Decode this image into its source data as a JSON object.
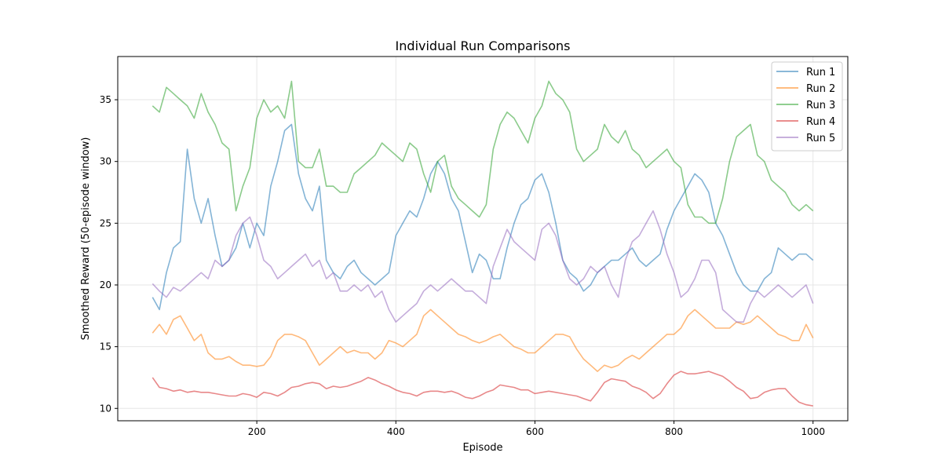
{
  "chart_data": {
    "type": "line",
    "title": "Individual Run Comparisons",
    "xlabel": "Episode",
    "ylabel": "Smoothed Reward (50-episode window)",
    "xlim": [
      0,
      1050
    ],
    "ylim": [
      9,
      38.5
    ],
    "xticks": [
      200,
      400,
      600,
      800,
      1000
    ],
    "yticks": [
      10,
      15,
      20,
      25,
      30,
      35
    ],
    "grid": true,
    "legend_position": "top-right",
    "series": [
      {
        "name": "Run 1",
        "color": "#1f77b4",
        "x": [
          50,
          60,
          70,
          80,
          90,
          100,
          110,
          120,
          130,
          140,
          150,
          160,
          170,
          180,
          190,
          200,
          210,
          220,
          230,
          240,
          250,
          260,
          270,
          280,
          290,
          300,
          310,
          320,
          330,
          340,
          350,
          360,
          370,
          380,
          390,
          400,
          410,
          420,
          430,
          440,
          450,
          460,
          470,
          480,
          490,
          500,
          510,
          520,
          530,
          540,
          550,
          560,
          570,
          580,
          590,
          600,
          610,
          620,
          630,
          640,
          650,
          660,
          670,
          680,
          690,
          700,
          710,
          720,
          730,
          740,
          750,
          760,
          770,
          780,
          790,
          800,
          810,
          820,
          830,
          840,
          850,
          860,
          870,
          880,
          890,
          900,
          910,
          920,
          930,
          940,
          950,
          960,
          970,
          980,
          990,
          1000
        ],
        "values": [
          19.0,
          18.0,
          21.0,
          23.0,
          23.5,
          31.0,
          27.0,
          25.0,
          27.0,
          24.0,
          21.5,
          22.0,
          23.0,
          25.0,
          23.0,
          25.0,
          24.0,
          28.0,
          30.0,
          32.5,
          33.0,
          29.0,
          27.0,
          26.0,
          28.0,
          22.0,
          21.0,
          20.5,
          21.5,
          22.0,
          21.0,
          20.5,
          20.0,
          20.5,
          21.0,
          24.0,
          25.0,
          26.0,
          25.5,
          27.0,
          29.0,
          30.0,
          29.0,
          27.0,
          26.0,
          23.5,
          21.0,
          22.5,
          22.0,
          20.5,
          20.5,
          23.0,
          25.0,
          26.5,
          27.0,
          28.5,
          29.0,
          27.5,
          25.0,
          22.0,
          21.0,
          20.5,
          19.5,
          20.0,
          21.0,
          21.5,
          22.0,
          22.0,
          22.5,
          23.0,
          22.0,
          21.5,
          22.0,
          22.5,
          24.5,
          26.0,
          27.0,
          28.0,
          29.0,
          28.5,
          27.5,
          25.0,
          24.0,
          22.5,
          21.0,
          20.0,
          19.5,
          19.5,
          20.5,
          21.0,
          23.0,
          22.5,
          22.0,
          22.5,
          22.5,
          22.0
        ]
      },
      {
        "name": "Run 2",
        "color": "#ff7f0e",
        "x": [
          50,
          60,
          70,
          80,
          90,
          100,
          110,
          120,
          130,
          140,
          150,
          160,
          170,
          180,
          190,
          200,
          210,
          220,
          230,
          240,
          250,
          260,
          270,
          280,
          290,
          300,
          310,
          320,
          330,
          340,
          350,
          360,
          370,
          380,
          390,
          400,
          410,
          420,
          430,
          440,
          450,
          460,
          470,
          480,
          490,
          500,
          510,
          520,
          530,
          540,
          550,
          560,
          570,
          580,
          590,
          600,
          610,
          620,
          630,
          640,
          650,
          660,
          670,
          680,
          690,
          700,
          710,
          720,
          730,
          740,
          750,
          760,
          770,
          780,
          790,
          800,
          810,
          820,
          830,
          840,
          850,
          860,
          870,
          880,
          890,
          900,
          910,
          920,
          930,
          940,
          950,
          960,
          970,
          980,
          990,
          1000
        ],
        "values": [
          16.1,
          16.8,
          16.0,
          17.2,
          17.5,
          16.5,
          15.5,
          16.0,
          14.5,
          14.0,
          14.0,
          14.2,
          13.8,
          13.5,
          13.5,
          13.4,
          13.5,
          14.2,
          15.5,
          16.0,
          16.0,
          15.8,
          15.5,
          14.5,
          13.5,
          14.0,
          14.5,
          15.0,
          14.5,
          14.7,
          14.5,
          14.5,
          14.0,
          14.5,
          15.5,
          15.3,
          15.0,
          15.5,
          16.0,
          17.5,
          18.0,
          17.5,
          17.0,
          16.5,
          16.0,
          15.8,
          15.5,
          15.3,
          15.5,
          15.8,
          16.0,
          15.5,
          15.0,
          14.8,
          14.5,
          14.5,
          15.0,
          15.5,
          16.0,
          16.0,
          15.8,
          14.8,
          14.0,
          13.5,
          13.0,
          13.5,
          13.3,
          13.5,
          14.0,
          14.3,
          14.0,
          14.5,
          15.0,
          15.5,
          16.0,
          16.0,
          16.5,
          17.5,
          18.0,
          17.5,
          17.0,
          16.5,
          16.5,
          16.5,
          17.0,
          16.8,
          17.0,
          17.5,
          17.0,
          16.5,
          16.0,
          15.8,
          15.5,
          15.5,
          16.8,
          15.7
        ]
      },
      {
        "name": "Run 3",
        "color": "#2ca02c",
        "x": [
          50,
          60,
          70,
          80,
          90,
          100,
          110,
          120,
          130,
          140,
          150,
          160,
          170,
          180,
          190,
          200,
          210,
          220,
          230,
          240,
          250,
          260,
          270,
          280,
          290,
          300,
          310,
          320,
          330,
          340,
          350,
          360,
          370,
          380,
          390,
          400,
          410,
          420,
          430,
          440,
          450,
          460,
          470,
          480,
          490,
          500,
          510,
          520,
          530,
          540,
          550,
          560,
          570,
          580,
          590,
          600,
          610,
          620,
          630,
          640,
          650,
          660,
          670,
          680,
          690,
          700,
          710,
          720,
          730,
          740,
          750,
          760,
          770,
          780,
          790,
          800,
          810,
          820,
          830,
          840,
          850,
          860,
          870,
          880,
          890,
          900,
          910,
          920,
          930,
          940,
          950,
          960,
          970,
          980,
          990,
          1000
        ],
        "values": [
          34.5,
          34.0,
          36.0,
          35.5,
          35.0,
          34.5,
          33.5,
          35.5,
          34.0,
          33.0,
          31.5,
          31.0,
          26.0,
          28.0,
          29.5,
          33.5,
          35.0,
          34.0,
          34.5,
          33.5,
          36.5,
          30.0,
          29.5,
          29.5,
          31.0,
          28.0,
          28.0,
          27.5,
          27.5,
          29.0,
          29.5,
          30.0,
          30.5,
          31.5,
          31.0,
          30.5,
          30.0,
          31.5,
          31.0,
          29.0,
          27.5,
          30.0,
          30.5,
          28.0,
          27.0,
          26.5,
          26.0,
          25.5,
          26.5,
          31.0,
          33.0,
          34.0,
          33.5,
          32.5,
          31.5,
          33.5,
          34.5,
          36.5,
          35.5,
          35.0,
          34.0,
          31.0,
          30.0,
          30.5,
          31.0,
          33.0,
          32.0,
          31.5,
          32.5,
          31.0,
          30.5,
          29.5,
          30.0,
          30.5,
          31.0,
          30.0,
          29.5,
          26.5,
          25.5,
          25.5,
          25.0,
          25.0,
          27.0,
          30.0,
          32.0,
          32.5,
          33.0,
          30.5,
          30.0,
          28.5,
          28.0,
          27.5,
          26.5,
          26.0,
          26.5,
          26.0
        ]
      },
      {
        "name": "Run 4",
        "color": "#d62728",
        "x": [
          50,
          60,
          70,
          80,
          90,
          100,
          110,
          120,
          130,
          140,
          150,
          160,
          170,
          180,
          190,
          200,
          210,
          220,
          230,
          240,
          250,
          260,
          270,
          280,
          290,
          300,
          310,
          320,
          330,
          340,
          350,
          360,
          370,
          380,
          390,
          400,
          410,
          420,
          430,
          440,
          450,
          460,
          470,
          480,
          490,
          500,
          510,
          520,
          530,
          540,
          550,
          560,
          570,
          580,
          590,
          600,
          610,
          620,
          630,
          640,
          650,
          660,
          670,
          680,
          690,
          700,
          710,
          720,
          730,
          740,
          750,
          760,
          770,
          780,
          790,
          800,
          810,
          820,
          830,
          840,
          850,
          860,
          870,
          880,
          890,
          900,
          910,
          920,
          930,
          940,
          950,
          960,
          970,
          980,
          990,
          1000
        ],
        "values": [
          12.5,
          11.7,
          11.6,
          11.4,
          11.5,
          11.3,
          11.4,
          11.3,
          11.3,
          11.2,
          11.1,
          11.0,
          11.0,
          11.2,
          11.1,
          10.9,
          11.3,
          11.2,
          11.0,
          11.3,
          11.7,
          11.8,
          12.0,
          12.1,
          12.0,
          11.6,
          11.8,
          11.7,
          11.8,
          12.0,
          12.2,
          12.5,
          12.3,
          12.0,
          11.8,
          11.5,
          11.3,
          11.2,
          11.0,
          11.3,
          11.4,
          11.4,
          11.3,
          11.4,
          11.2,
          10.9,
          10.8,
          11.0,
          11.3,
          11.5,
          11.9,
          11.8,
          11.7,
          11.5,
          11.5,
          11.2,
          11.3,
          11.4,
          11.3,
          11.2,
          11.1,
          11.0,
          10.8,
          10.6,
          11.3,
          12.1,
          12.4,
          12.3,
          12.2,
          11.8,
          11.6,
          11.3,
          10.8,
          11.2,
          12.0,
          12.7,
          13.0,
          12.8,
          12.8,
          12.9,
          13.0,
          12.8,
          12.6,
          12.2,
          11.7,
          11.4,
          10.8,
          10.9,
          11.3,
          11.5,
          11.6,
          11.6,
          11.0,
          10.5,
          10.3,
          10.2
        ]
      },
      {
        "name": "Run 5",
        "color": "#9467bd",
        "x": [
          50,
          60,
          70,
          80,
          90,
          100,
          110,
          120,
          130,
          140,
          150,
          160,
          170,
          180,
          190,
          200,
          210,
          220,
          230,
          240,
          250,
          260,
          270,
          280,
          290,
          300,
          310,
          320,
          330,
          340,
          350,
          360,
          370,
          380,
          390,
          400,
          410,
          420,
          430,
          440,
          450,
          460,
          470,
          480,
          490,
          500,
          510,
          520,
          530,
          540,
          550,
          560,
          570,
          580,
          590,
          600,
          610,
          620,
          630,
          640,
          650,
          660,
          670,
          680,
          690,
          700,
          710,
          720,
          730,
          740,
          750,
          760,
          770,
          780,
          790,
          800,
          810,
          820,
          830,
          840,
          850,
          860,
          870,
          880,
          890,
          900,
          910,
          920,
          930,
          940,
          950,
          960,
          970,
          980,
          990,
          1000
        ],
        "values": [
          20.1,
          19.5,
          19.0,
          19.8,
          19.5,
          20.0,
          20.5,
          21.0,
          20.5,
          22.0,
          21.5,
          22.0,
          24.0,
          25.0,
          25.5,
          24.0,
          22.0,
          21.5,
          20.5,
          21.0,
          21.5,
          22.0,
          22.5,
          21.5,
          22.0,
          20.5,
          21.0,
          19.5,
          19.5,
          20.0,
          19.5,
          20.0,
          19.0,
          19.5,
          18.0,
          17.0,
          17.5,
          18.0,
          18.5,
          19.5,
          20.0,
          19.5,
          20.0,
          20.5,
          20.0,
          19.5,
          19.5,
          19.0,
          18.5,
          21.5,
          23.0,
          24.5,
          23.5,
          23.0,
          22.5,
          22.0,
          24.5,
          25.0,
          24.0,
          22.0,
          20.5,
          20.0,
          20.5,
          21.5,
          21.0,
          21.5,
          20.0,
          19.0,
          22.0,
          23.5,
          24.0,
          25.0,
          26.0,
          24.5,
          22.5,
          21.0,
          19.0,
          19.5,
          20.5,
          22.0,
          22.0,
          21.0,
          18.0,
          17.5,
          17.0,
          17.0,
          18.5,
          19.5,
          19.0,
          19.5,
          20.0,
          19.5,
          19.0,
          19.5,
          20.0,
          18.5
        ]
      }
    ]
  }
}
